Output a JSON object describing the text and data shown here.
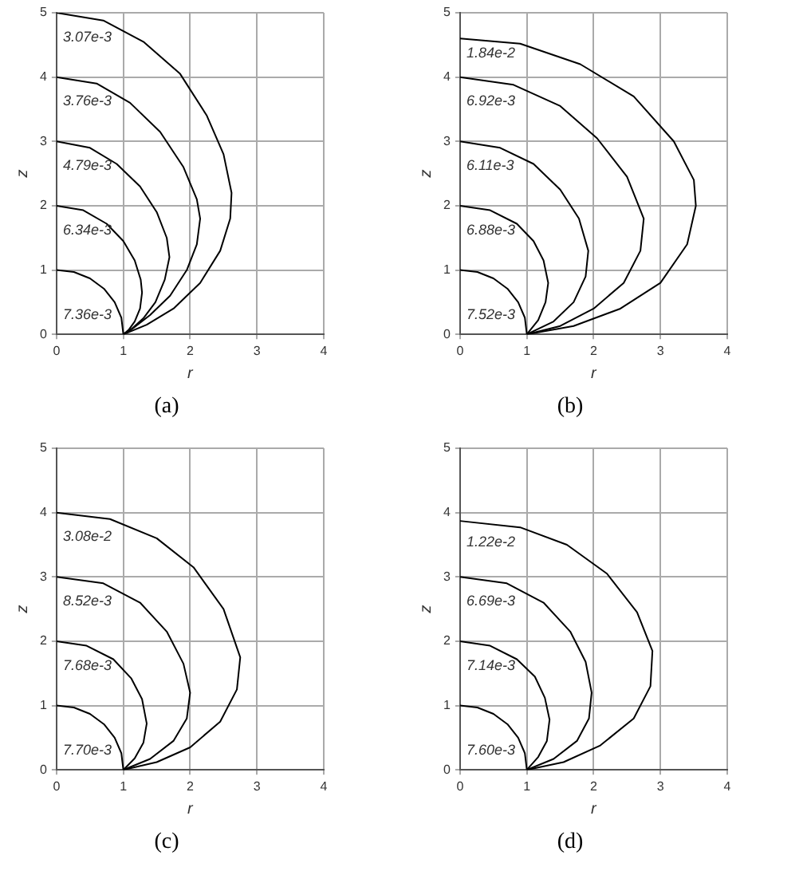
{
  "chart_data": [
    {
      "type": "line",
      "title": "(a)",
      "xlabel": "r",
      "ylabel": "z",
      "xlim": [
        0,
        4
      ],
      "ylim": [
        0,
        5
      ],
      "xticks": [
        0,
        1,
        2,
        3,
        4
      ],
      "yticks": [
        0,
        1,
        2,
        3,
        4,
        5
      ],
      "grid": true,
      "legend": false,
      "marker": "none",
      "line_style": "solid",
      "series": [
        {
          "color": "#000000",
          "x": [
            0,
            0.26,
            0.5,
            0.71,
            0.87,
            0.97,
            1
          ],
          "values": [
            1,
            0.97,
            0.87,
            0.71,
            0.5,
            0.26,
            0
          ]
        },
        {
          "color": "#000000",
          "x": [
            0,
            0.4,
            0.75,
            1.0,
            1.17,
            1.26,
            1.28,
            1.25,
            1.17,
            1.08,
            1
          ],
          "values": [
            2,
            1.93,
            1.72,
            1.45,
            1.15,
            0.85,
            0.65,
            0.4,
            0.2,
            0.07,
            0
          ]
        },
        {
          "color": "#000000",
          "x": [
            0,
            0.5,
            0.9,
            1.25,
            1.5,
            1.65,
            1.69,
            1.62,
            1.48,
            1.3,
            1.12,
            1
          ],
          "values": [
            3,
            2.9,
            2.65,
            2.3,
            1.9,
            1.5,
            1.2,
            0.85,
            0.5,
            0.25,
            0.08,
            0
          ]
        },
        {
          "color": "#000000",
          "x": [
            0,
            0.6,
            1.1,
            1.55,
            1.9,
            2.1,
            2.15,
            2.1,
            1.95,
            1.7,
            1.4,
            1.15,
            1
          ],
          "values": [
            4,
            3.9,
            3.6,
            3.15,
            2.6,
            2.1,
            1.8,
            1.4,
            1.0,
            0.6,
            0.3,
            0.1,
            0
          ]
        },
        {
          "color": "#000000",
          "x": [
            0,
            0.7,
            1.3,
            1.85,
            2.25,
            2.5,
            2.62,
            2.6,
            2.45,
            2.15,
            1.75,
            1.35,
            1
          ],
          "values": [
            5,
            4.88,
            4.55,
            4.05,
            3.4,
            2.8,
            2.2,
            1.8,
            1.3,
            0.8,
            0.4,
            0.15,
            0
          ]
        }
      ],
      "annotations": [
        "3.07e-3",
        "3.76e-3",
        "4.79e-3",
        "6.34e-3",
        "7.36e-3"
      ]
    },
    {
      "type": "line",
      "title": "(b)",
      "xlabel": "r",
      "ylabel": "z",
      "xlim": [
        0,
        4
      ],
      "ylim": [
        0,
        5
      ],
      "xticks": [
        0,
        1,
        2,
        3,
        4
      ],
      "yticks": [
        0,
        1,
        2,
        3,
        4,
        5
      ],
      "grid": true,
      "legend": false,
      "marker": "none",
      "line_style": "solid",
      "series": [
        {
          "color": "#000000",
          "x": [
            0,
            0.26,
            0.5,
            0.71,
            0.87,
            0.97,
            1
          ],
          "values": [
            1,
            0.97,
            0.87,
            0.71,
            0.5,
            0.26,
            0
          ]
        },
        {
          "color": "#000000",
          "x": [
            0,
            0.45,
            0.85,
            1.1,
            1.25,
            1.32,
            1.28,
            1.17,
            1
          ],
          "values": [
            2,
            1.93,
            1.72,
            1.45,
            1.15,
            0.8,
            0.5,
            0.22,
            0
          ]
        },
        {
          "color": "#000000",
          "x": [
            0,
            0.6,
            1.1,
            1.5,
            1.78,
            1.92,
            1.88,
            1.7,
            1.4,
            1
          ],
          "values": [
            3,
            2.9,
            2.65,
            2.25,
            1.8,
            1.3,
            0.9,
            0.5,
            0.2,
            0
          ]
        },
        {
          "color": "#000000",
          "x": [
            0,
            0.8,
            1.5,
            2.05,
            2.5,
            2.75,
            2.7,
            2.45,
            2.0,
            1.5,
            1
          ],
          "values": [
            4,
            3.88,
            3.55,
            3.05,
            2.45,
            1.8,
            1.3,
            0.8,
            0.4,
            0.13,
            0
          ]
        },
        {
          "color": "#000000",
          "x": [
            0,
            0.9,
            1.8,
            2.6,
            3.2,
            3.5,
            3.53,
            3.4,
            3.0,
            2.4,
            1.7,
            1
          ],
          "values": [
            4.6,
            4.52,
            4.2,
            3.7,
            3.0,
            2.4,
            2.0,
            1.4,
            0.8,
            0.4,
            0.13,
            0
          ]
        }
      ],
      "annotations": [
        "1.84e-2",
        "6.92e-3",
        "6.11e-3",
        "6.88e-3",
        "7.52e-3"
      ]
    },
    {
      "type": "line",
      "title": "(c)",
      "xlabel": "r",
      "ylabel": "z",
      "xlim": [
        0,
        4
      ],
      "ylim": [
        0,
        5
      ],
      "xticks": [
        0,
        1,
        2,
        3,
        4
      ],
      "yticks": [
        0,
        1,
        2,
        3,
        4,
        5
      ],
      "grid": true,
      "legend": false,
      "marker": "none",
      "line_style": "solid",
      "series": [
        {
          "color": "#000000",
          "x": [
            0,
            0.26,
            0.5,
            0.71,
            0.87,
            0.97,
            1
          ],
          "values": [
            1,
            0.97,
            0.87,
            0.71,
            0.5,
            0.26,
            0
          ]
        },
        {
          "color": "#000000",
          "x": [
            0,
            0.45,
            0.85,
            1.12,
            1.28,
            1.35,
            1.3,
            1.17,
            1
          ],
          "values": [
            2,
            1.93,
            1.72,
            1.42,
            1.1,
            0.72,
            0.42,
            0.18,
            0
          ]
        },
        {
          "color": "#000000",
          "x": [
            0,
            0.7,
            1.25,
            1.65,
            1.9,
            2.0,
            1.95,
            1.75,
            1.4,
            1
          ],
          "values": [
            3,
            2.9,
            2.6,
            2.15,
            1.65,
            1.2,
            0.8,
            0.45,
            0.17,
            0
          ]
        },
        {
          "color": "#000000",
          "x": [
            0,
            0.8,
            1.5,
            2.05,
            2.5,
            2.75,
            2.7,
            2.45,
            2.0,
            1.5,
            1
          ],
          "values": [
            4,
            3.9,
            3.6,
            3.15,
            2.5,
            1.75,
            1.25,
            0.75,
            0.35,
            0.12,
            0
          ]
        }
      ],
      "annotations": [
        "3.08e-2",
        "8.52e-3",
        "7.68e-3",
        "7.70e-3"
      ]
    },
    {
      "type": "line",
      "title": "(d)",
      "xlabel": "r",
      "ylabel": "z",
      "xlim": [
        0,
        4
      ],
      "ylim": [
        0,
        5
      ],
      "xticks": [
        0,
        1,
        2,
        3,
        4
      ],
      "yticks": [
        0,
        1,
        2,
        3,
        4,
        5
      ],
      "grid": true,
      "legend": false,
      "marker": "none",
      "line_style": "solid",
      "series": [
        {
          "color": "#000000",
          "x": [
            0,
            0.26,
            0.5,
            0.71,
            0.87,
            0.97,
            1
          ],
          "values": [
            1,
            0.97,
            0.87,
            0.71,
            0.5,
            0.26,
            0
          ]
        },
        {
          "color": "#000000",
          "x": [
            0,
            0.45,
            0.85,
            1.12,
            1.27,
            1.34,
            1.3,
            1.17,
            1
          ],
          "values": [
            2,
            1.93,
            1.72,
            1.45,
            1.12,
            0.78,
            0.45,
            0.2,
            0
          ]
        },
        {
          "color": "#000000",
          "x": [
            0,
            0.7,
            1.25,
            1.65,
            1.88,
            1.97,
            1.93,
            1.75,
            1.4,
            1
          ],
          "values": [
            3,
            2.9,
            2.6,
            2.15,
            1.68,
            1.2,
            0.8,
            0.45,
            0.17,
            0
          ]
        },
        {
          "color": "#000000",
          "x": [
            0,
            0.9,
            1.6,
            2.2,
            2.65,
            2.88,
            2.85,
            2.6,
            2.1,
            1.55,
            1
          ],
          "values": [
            3.87,
            3.77,
            3.5,
            3.05,
            2.45,
            1.85,
            1.3,
            0.8,
            0.38,
            0.12,
            0
          ]
        }
      ],
      "annotations": [
        "1.22e-2",
        "6.69e-3",
        "7.14e-3",
        "7.60e-3"
      ]
    }
  ]
}
